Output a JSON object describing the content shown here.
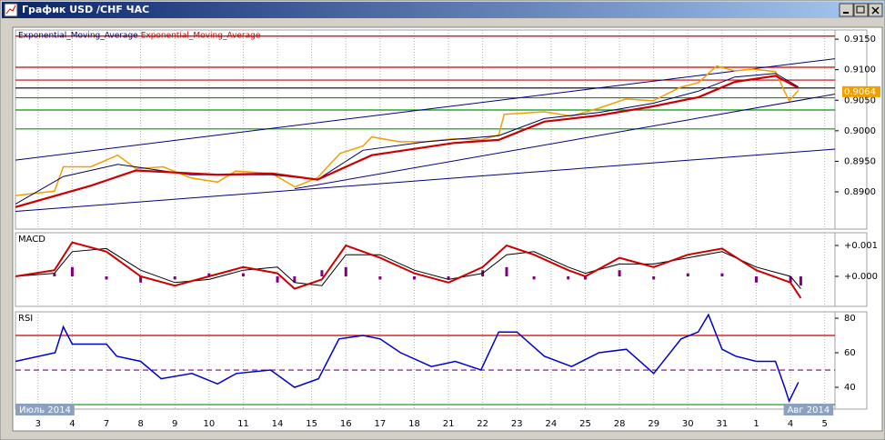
{
  "window": {
    "title": "График USD /CHF ЧАС"
  },
  "chart_data": [
    {
      "type": "line",
      "xlim": [
        -0.66,
        23.3
      ],
      "ylim": [
        0.8839,
        0.9165
      ],
      "yticks": [
        {
          "value": 0.89,
          "label": "0.8900"
        },
        {
          "value": 0.895,
          "label": "0.8950"
        },
        {
          "value": 0.9,
          "label": "0.9000"
        },
        {
          "value": 0.905,
          "label": "0.9050"
        },
        {
          "value": 0.91,
          "label": "0.9100"
        },
        {
          "value": 0.915,
          "label": "0.9150"
        }
      ],
      "last_price": 0.9064,
      "series": [
        {
          "color": "#f0a000",
          "width": 1.5,
          "x": [
            -0.66,
            0.48,
            0.74,
            1.54,
            2.33,
            2.86,
            3.66,
            4.46,
            5.25,
            5.78,
            6.84,
            7.51,
            8.17,
            8.83,
            9.5,
            9.76,
            10.56,
            11.35,
            12.15,
            12.95,
            13.47,
            13.63,
            14.8,
            15.6,
            16.39,
            17.19,
            17.98,
            18.78,
            19.31,
            19.84,
            20.37,
            20.9,
            21.56,
            21.83,
            21.96,
            22.23
          ],
          "values": [
            0.8894,
            0.8901,
            0.8941,
            0.8941,
            0.896,
            0.8938,
            0.8941,
            0.8923,
            0.8916,
            0.8934,
            0.893,
            0.8908,
            0.8923,
            0.8963,
            0.8975,
            0.899,
            0.8982,
            0.8982,
            0.8987,
            0.8985,
            0.8993,
            0.9027,
            0.9031,
            0.9024,
            0.9037,
            0.9052,
            0.9049,
            0.9071,
            0.9079,
            0.9106,
            0.9098,
            0.9101,
            0.9097,
            0.9064,
            0.9049,
            0.9066
          ]
        },
        {
          "name": "Exponential_Moving_Average",
          "color": "#000060",
          "width": 1,
          "x": [
            -0.66,
            0.74,
            2.33,
            4.46,
            6.84,
            8.17,
            9.5,
            11.35,
            13.47,
            14.8,
            16.39,
            17.98,
            19.31,
            20.37,
            21.56,
            22.23
          ],
          "values": [
            0.888,
            0.8925,
            0.8945,
            0.8928,
            0.8928,
            0.892,
            0.8968,
            0.8982,
            0.8992,
            0.902,
            0.903,
            0.9045,
            0.9065,
            0.9088,
            0.9094,
            0.9072
          ]
        },
        {
          "name": "Exponential_Moving_Average",
          "color": "#cc0000",
          "width": 2.2,
          "x": [
            -0.66,
            1.54,
            2.86,
            5.25,
            6.84,
            8.17,
            9.76,
            12.15,
            13.47,
            14.8,
            16.39,
            17.98,
            19.31,
            20.37,
            21.56,
            22.23
          ],
          "values": [
            0.8875,
            0.891,
            0.8935,
            0.8928,
            0.893,
            0.892,
            0.896,
            0.898,
            0.8985,
            0.9015,
            0.9025,
            0.904,
            0.9055,
            0.908,
            0.909,
            0.907
          ]
        }
      ],
      "levels": [
        {
          "value": 0.9155,
          "color": "#cc0000"
        },
        {
          "value": 0.9104,
          "color": "#cc0000"
        },
        {
          "value": 0.9083,
          "color": "#cc0000"
        },
        {
          "value": 0.907,
          "color": "#000000"
        },
        {
          "value": 0.9054,
          "color": "#009900"
        },
        {
          "value": 0.9034,
          "color": "#009900"
        },
        {
          "value": 0.9003,
          "color": "#009900"
        }
      ],
      "trendlines": [
        {
          "x": [
            -0.66,
            23.3
          ],
          "y": [
            0.8952,
            0.9118
          ],
          "color": "#000080"
        },
        {
          "x": [
            -0.66,
            23.3
          ],
          "y": [
            0.8868,
            0.897
          ],
          "color": "#000080"
        },
        {
          "x": [
            7.5,
            23.3
          ],
          "y": [
            0.8905,
            0.906
          ],
          "color": "#000080"
        }
      ]
    },
    {
      "type": "line",
      "title": "MACD",
      "xlim": [
        -0.66,
        23.3
      ],
      "ylim": [
        -0.000971,
        0.001412
      ],
      "yticks": [
        {
          "value": 0,
          "label": "+0.000"
        },
        {
          "value": 0.001,
          "label": "+0.001"
        }
      ],
      "series": [
        {
          "type": "bar",
          "color": "#800080",
          "x": [
            -0.66,
            0.48,
            1.0,
            2.0,
            3.0,
            4.0,
            5.0,
            6.0,
            7.0,
            7.5,
            8.3,
            9.0,
            10.0,
            11.0,
            12.0,
            13.0,
            13.7,
            14.5,
            15.5,
            16.0,
            17.0,
            18.0,
            19.0,
            20.0,
            21.0,
            22.0,
            22.3
          ],
          "values": [
            0,
            0.0001,
            0.0003,
            -0.0001,
            -0.0002,
            -0.0001,
            0.0001,
            0.0001,
            -0.0002,
            -0.0002,
            0.0002,
            0.0003,
            -0.0001,
            -0.0001,
            -0.0001,
            0.0002,
            0.0003,
            -0.0001,
            -0.0001,
            -0.0001,
            0.0002,
            -0.0001,
            0.0001,
            0.0001,
            -0.0002,
            -0.0002,
            -0.0003
          ]
        },
        {
          "color": "#000000",
          "width": 1,
          "x": [
            -0.66,
            0.48,
            1.0,
            2.0,
            3.0,
            4.0,
            5.0,
            6.0,
            7.0,
            7.5,
            8.3,
            9.0,
            10.0,
            11.0,
            12.0,
            13.0,
            13.7,
            14.5,
            15.5,
            16.0,
            17.0,
            18.0,
            19.0,
            20.0,
            21.0,
            22.0,
            22.3
          ],
          "values": [
            0,
            0.0001,
            0.0008,
            0.0009,
            0.0002,
            -0.0002,
            -0.0001,
            0.0002,
            0.0003,
            -0.0002,
            -0.0003,
            0.0007,
            0.0007,
            0.0002,
            -0.0001,
            0.0001,
            0.0007,
            0.0008,
            0.0003,
            0.0001,
            0.0004,
            0.0004,
            0.0006,
            0.0008,
            0.0003,
            0,
            -0.0004
          ]
        },
        {
          "color": "#cc0000",
          "width": 2,
          "x": [
            -0.66,
            0.48,
            1.0,
            2.0,
            3.0,
            4.0,
            5.0,
            6.0,
            7.0,
            7.5,
            8.3,
            9.0,
            10.0,
            11.0,
            12.0,
            13.0,
            13.7,
            14.5,
            15.5,
            16.0,
            17.0,
            18.0,
            19.0,
            20.0,
            21.0,
            22.0,
            22.3
          ],
          "values": [
            0,
            0.0002,
            0.0011,
            0.0008,
            0,
            -0.0003,
            0,
            0.0003,
            0.0001,
            -0.0004,
            -0.0001,
            0.001,
            0.0006,
            0.0001,
            -0.0002,
            0.0003,
            0.001,
            0.0007,
            0.0002,
            0,
            0.0006,
            0.0003,
            0.0007,
            0.0009,
            0.0002,
            -0.0002,
            -0.0007
          ]
        }
      ]
    },
    {
      "type": "line",
      "title": "RSI",
      "xlim": [
        -0.66,
        23.3
      ],
      "ylim": [
        27.4,
        83.7
      ],
      "yticks": [
        40,
        60,
        80
      ],
      "xticks": [
        {
          "value": 0,
          "label": "3"
        },
        {
          "value": 1,
          "label": "4"
        },
        {
          "value": 2,
          "label": "7"
        },
        {
          "value": 3,
          "label": "8"
        },
        {
          "value": 4,
          "label": "9"
        },
        {
          "value": 5,
          "label": "10"
        },
        {
          "value": 6,
          "label": "11"
        },
        {
          "value": 7,
          "label": "14"
        },
        {
          "value": 8,
          "label": "15"
        },
        {
          "value": 9,
          "label": "16"
        },
        {
          "value": 10,
          "label": "17"
        },
        {
          "value": 11,
          "label": "18"
        },
        {
          "value": 12,
          "label": "21"
        },
        {
          "value": 13,
          "label": "22"
        },
        {
          "value": 14,
          "label": "23"
        },
        {
          "value": 15,
          "label": "24"
        },
        {
          "value": 16,
          "label": "25"
        },
        {
          "value": 17,
          "label": "28"
        },
        {
          "value": 18,
          "label": "29"
        },
        {
          "value": 19,
          "label": "30"
        },
        {
          "value": 20,
          "label": "31"
        },
        {
          "value": 21,
          "label": "1"
        },
        {
          "value": 22,
          "label": "4"
        },
        {
          "value": 23,
          "label": "5"
        }
      ],
      "period_labels": [
        {
          "value": -0.66,
          "label": "Июль 2014"
        },
        {
          "value": 21.8,
          "label": "Авг 2014"
        }
      ],
      "series": [
        {
          "color": "#0000cc",
          "width": 1.5,
          "x": [
            -0.66,
            0.5,
            0.74,
            1.0,
            2.0,
            2.3,
            3.0,
            3.6,
            4.5,
            5.25,
            5.8,
            6.8,
            7.5,
            8.2,
            8.8,
            9.5,
            10.0,
            10.6,
            11.5,
            12.2,
            12.95,
            13.47,
            14.0,
            14.8,
            15.6,
            16.4,
            17.2,
            18.0,
            18.8,
            19.3,
            19.6,
            20.0,
            20.4,
            21.0,
            21.56,
            21.83,
            21.96,
            22.23
          ],
          "values": [
            55,
            60,
            75,
            65,
            65,
            58,
            55,
            45,
            48,
            42,
            48,
            50,
            40,
            45,
            68,
            70,
            68,
            60,
            52,
            55,
            50,
            72,
            72,
            58,
            52,
            60,
            62,
            48,
            68,
            72,
            82,
            62,
            58,
            55,
            55,
            40,
            32,
            43
          ]
        }
      ],
      "levels": [
        {
          "value": 70,
          "color": "#cc0000"
        },
        {
          "value": 50,
          "color": "#800080",
          "dash": true
        },
        {
          "value": 30,
          "color": "#009900"
        }
      ]
    }
  ]
}
